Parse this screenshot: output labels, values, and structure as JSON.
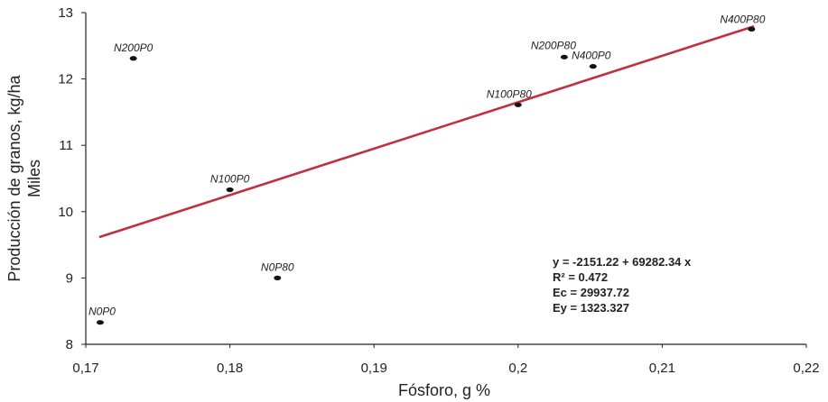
{
  "chart_data": {
    "type": "scatter",
    "title": "",
    "xlabel": "Fósforo, g %",
    "ylabel": "Producción de granos, kg/ha",
    "ylabel_unit": "Miles",
    "xlim": [
      0.17,
      0.22
    ],
    "ylim": [
      8,
      13
    ],
    "x_ticks": [
      "0,17",
      "0,18",
      "0,19",
      "0,2",
      "0,21",
      "0,22"
    ],
    "y_ticks": [
      "8",
      "9",
      "10",
      "11",
      "12",
      "13"
    ],
    "points": [
      {
        "label": "N0P0",
        "x": 0.171,
        "y": 8.33
      },
      {
        "label": "N200P0",
        "x": 0.1733,
        "y": 12.31
      },
      {
        "label": "N100P0",
        "x": 0.18,
        "y": 10.33
      },
      {
        "label": "N0P80",
        "x": 0.1833,
        "y": 9.0
      },
      {
        "label": "N100P80",
        "x": 0.2,
        "y": 11.61
      },
      {
        "label": "N200P80",
        "x": 0.2032,
        "y": 12.33
      },
      {
        "label": "N400P0",
        "x": 0.2052,
        "y": 12.19
      },
      {
        "label": "N400P80",
        "x": 0.2162,
        "y": 12.75
      }
    ],
    "trendline": {
      "x_start": 0.171,
      "x_end": 0.2163,
      "y_start": 9.62,
      "y_end": 12.79,
      "color": "#c0303f"
    },
    "point_color": "#111111",
    "stats": [
      "y   = -2151.22 + 69282.34 x",
      "R² = 0.472",
      "Ec = 29937.72",
      "Ey = 1323.327"
    ]
  }
}
